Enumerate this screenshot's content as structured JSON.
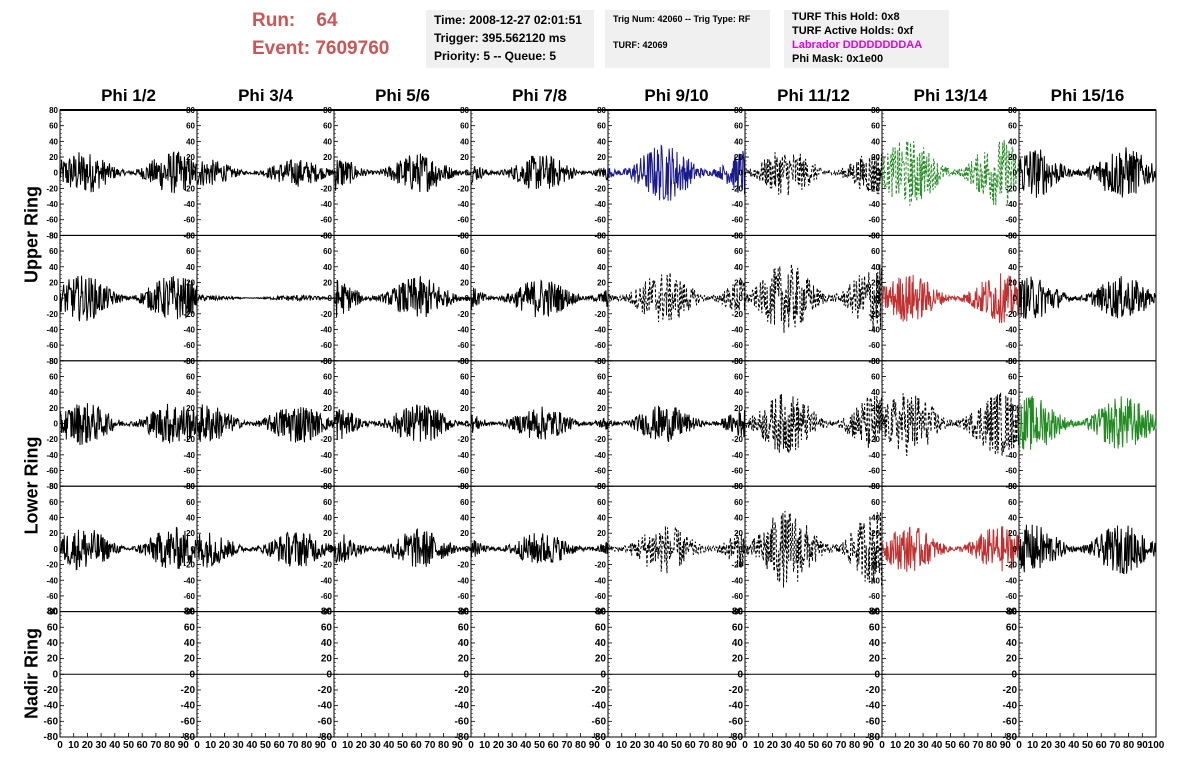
{
  "header": {
    "run_label": "Run:",
    "run_value": "64",
    "event_label": "Event:",
    "event_value": "7609760",
    "time": "Time: 2008-12-27 02:01:51",
    "trigger": "Trigger: 395.562120 ms",
    "priority": "Priority: 5 -- Queue: 5",
    "trig_num": "Trig Num: 42060 -- Trig Type: RF",
    "turf": "TURF: 42069",
    "turf_this_hold": "TURF This Hold: 0x8",
    "turf_active_holds": "TURF Active Holds: 0xf",
    "labrador": "Labrador DDDDDDDDAA",
    "phi_mask": "Phi Mask: 0x1e00",
    "labrador_color": "#e600e6"
  },
  "chart_data": {
    "type": "line",
    "columns": [
      "Phi 1/2",
      "Phi 3/4",
      "Phi 5/6",
      "Phi 7/8",
      "Phi 9/10",
      "Phi 11/12",
      "Phi 13/14",
      "Phi 15/16"
    ],
    "row_groups": [
      "Upper Ring",
      "Lower Ring",
      "Nadir Ring"
    ],
    "rows": 5,
    "xlim": [
      0,
      100
    ],
    "ylim": [
      -80,
      80
    ],
    "y_ticks": [
      -80,
      -60,
      -40,
      -20,
      0,
      20,
      40,
      60,
      80
    ],
    "x_ticks": [
      0,
      10,
      20,
      30,
      40,
      50,
      60,
      70,
      80,
      90,
      100
    ],
    "channels": [
      [
        {
          "style": "solid",
          "color": "#000000",
          "amp": 28
        },
        {
          "style": "solid",
          "color": "#000000",
          "amp": 18
        },
        {
          "style": "solid",
          "color": "#000000",
          "amp": 26
        },
        {
          "style": "solid",
          "color": "#000000",
          "amp": 24
        },
        {
          "style": "solid",
          "color": "#1a1a8c",
          "amp": 38
        },
        {
          "style": "dashed",
          "color": "#000000",
          "amp": 30
        },
        {
          "style": "dashed",
          "color": "#228b22",
          "amp": 44
        },
        {
          "style": "solid",
          "color": "#000000",
          "amp": 34
        }
      ],
      [
        {
          "style": "solid",
          "color": "#000000",
          "amp": 30
        },
        {
          "style": "solid",
          "color": "#000000",
          "amp": 4
        },
        {
          "style": "solid",
          "color": "#000000",
          "amp": 28
        },
        {
          "style": "solid",
          "color": "#000000",
          "amp": 26
        },
        {
          "style": "dashed",
          "color": "#000000",
          "amp": 34
        },
        {
          "style": "dashed",
          "color": "#000000",
          "amp": 45
        },
        {
          "style": "solid",
          "color": "#c03030",
          "amp": 32
        },
        {
          "style": "solid",
          "color": "#000000",
          "amp": 28
        }
      ],
      [
        {
          "style": "solid",
          "color": "#000000",
          "amp": 28
        },
        {
          "style": "solid",
          "color": "#000000",
          "amp": 26
        },
        {
          "style": "solid",
          "color": "#000000",
          "amp": 26
        },
        {
          "style": "solid",
          "color": "#000000",
          "amp": 22
        },
        {
          "style": "solid",
          "color": "#000000",
          "amp": 24
        },
        {
          "style": "dashed",
          "color": "#000000",
          "amp": 40
        },
        {
          "style": "dashed",
          "color": "#000000",
          "amp": 42
        },
        {
          "style": "solid",
          "color": "#228b22",
          "amp": 36
        }
      ],
      [
        {
          "style": "solid",
          "color": "#000000",
          "amp": 28
        },
        {
          "style": "solid",
          "color": "#000000",
          "amp": 24
        },
        {
          "style": "solid",
          "color": "#000000",
          "amp": 26
        },
        {
          "style": "solid",
          "color": "#000000",
          "amp": 22
        },
        {
          "style": "dashed",
          "color": "#000000",
          "amp": 32
        },
        {
          "style": "dashed",
          "color": "#000000",
          "amp": 50
        },
        {
          "style": "solid",
          "color": "#c03030",
          "amp": 30
        },
        {
          "style": "solid",
          "color": "#000000",
          "amp": 32
        }
      ],
      [
        {
          "style": "flat",
          "color": "#000000",
          "amp": 0
        },
        {
          "style": "flat",
          "color": "#000000",
          "amp": 0
        },
        {
          "style": "flat",
          "color": "#000000",
          "amp": 0
        },
        {
          "style": "flat",
          "color": "#000000",
          "amp": 0
        },
        {
          "style": "flat",
          "color": "#000000",
          "amp": 0
        },
        {
          "style": "flat",
          "color": "#000000",
          "amp": 0
        },
        {
          "style": "flat",
          "color": "#000000",
          "amp": 0
        },
        {
          "style": "flat",
          "color": "#000000",
          "amp": 0
        }
      ]
    ]
  }
}
